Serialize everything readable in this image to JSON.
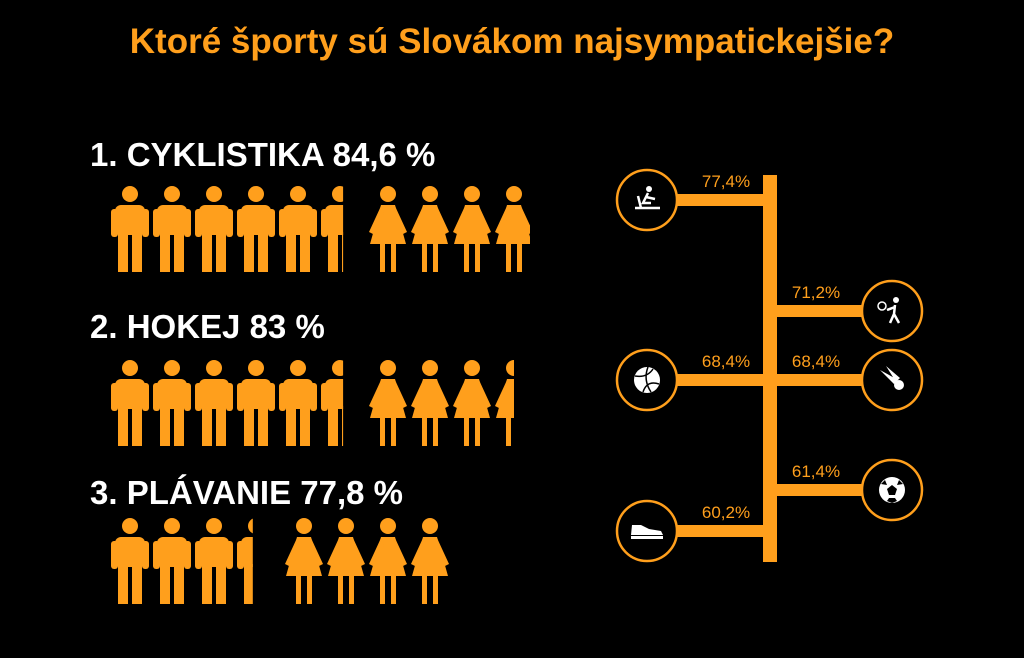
{
  "title": "Ktoré športy sú Slovákom najsympatickejšie?",
  "colors": {
    "accent": "#FF9F1C",
    "background": "#000000",
    "text": "#FFFFFF"
  },
  "ranking": [
    {
      "rank": "1.",
      "name": "CYKLISTIKA",
      "value_label": "84,6 %",
      "men_fill": 0.55,
      "women_fill": 0.7
    },
    {
      "rank": "2.",
      "name": "HOKEJ",
      "value_label": "83 %",
      "men_fill": 0.55,
      "women_fill": 0.55
    },
    {
      "rank": "3.",
      "name": "PLÁVANIE",
      "value_label": "77,8 %",
      "men_fill": 0.4,
      "women_fill": 0.25
    }
  ],
  "chart_data": {
    "type": "bar",
    "categories": [
      "cross-country skiing",
      "tennis",
      "volleyball",
      "badminton",
      "football",
      "running"
    ],
    "values": [
      77.4,
      71.2,
      68.4,
      68.4,
      61.4,
      60.2
    ],
    "value_labels": [
      "77,4%",
      "71,2%",
      "68,4%",
      "68,4%",
      "61,4%",
      "60,2%"
    ],
    "icons": [
      "skier-icon",
      "tennis-player-icon",
      "volleyball-icon",
      "shuttlecock-icon",
      "soccer-ball-icon",
      "sneaker-icon"
    ],
    "sides": [
      "left",
      "right",
      "left",
      "right",
      "right",
      "left"
    ]
  }
}
